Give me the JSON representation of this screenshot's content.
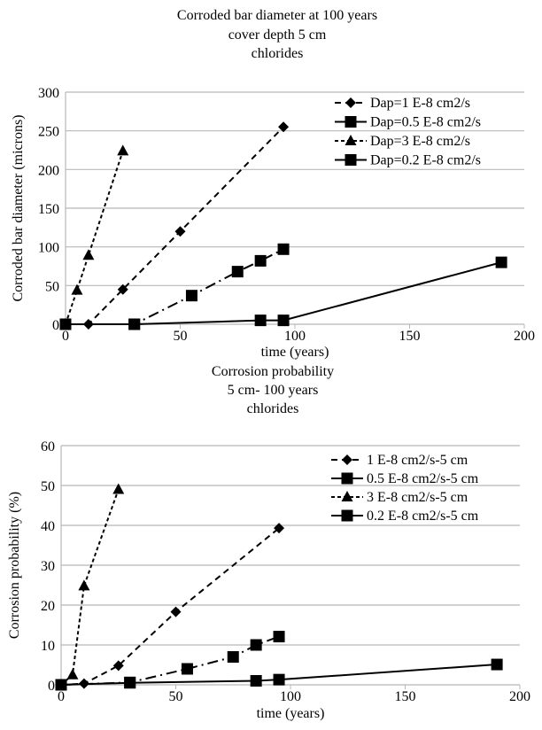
{
  "chart_data": [
    {
      "type": "line",
      "title": [
        "Corroded bar diameter at  100 years",
        "cover depth 5 cm",
        "chlorides"
      ],
      "xlabel": "time (years)",
      "ylabel": "Corroded bar diameter (microns)",
      "xlim": [
        0,
        200
      ],
      "ylim": [
        0,
        300
      ],
      "xticks": [
        0,
        50,
        100,
        150,
        200
      ],
      "yticks": [
        0,
        50,
        100,
        150,
        200,
        250,
        300
      ],
      "grid": "horizontal",
      "legend": "top-right",
      "series": [
        {
          "name": "Dap=1 E-8 cm2/s",
          "marker": "diamond",
          "dash": "dashed",
          "x": [
            0,
            10,
            25,
            50,
            95
          ],
          "y": [
            0,
            0,
            45,
            120,
            255
          ]
        },
        {
          "name": "Dap=0.5 E-8 cm2/s",
          "marker": "square",
          "dash": "dash-dot",
          "x": [
            0,
            30,
            55,
            75,
            85,
            95
          ],
          "y": [
            0,
            0,
            37,
            68,
            82,
            97
          ]
        },
        {
          "name": "Dap=3 E-8 cm2/s",
          "marker": "triangle",
          "dash": "short-dash",
          "x": [
            0,
            5,
            10,
            25
          ],
          "y": [
            0,
            44,
            89,
            224
          ]
        },
        {
          "name": "Dap=0.2 E-8 cm2/s",
          "marker": "square",
          "dash": "solid",
          "x": [
            0,
            30,
            85,
            95,
            190
          ],
          "y": [
            0,
            0,
            5,
            5,
            80
          ]
        }
      ]
    },
    {
      "type": "line",
      "title": [
        "Corrosion probability",
        "5 cm- 100 years",
        "chlorides"
      ],
      "xlabel": "time (years)",
      "ylabel": "Corrosion probability (%)",
      "xlim": [
        0,
        200
      ],
      "ylim": [
        0,
        60
      ],
      "xticks": [
        0,
        50,
        100,
        150,
        200
      ],
      "yticks": [
        0,
        10,
        20,
        30,
        40,
        50,
        60
      ],
      "grid": "horizontal",
      "legend": "top-right",
      "series": [
        {
          "name": "1 E-8 cm2/s-5 cm",
          "marker": "diamond",
          "dash": "dashed",
          "x": [
            0,
            10,
            25,
            50,
            95
          ],
          "y": [
            0,
            0.3,
            4.8,
            18.3,
            39.3
          ]
        },
        {
          "name": "0.5 E-8 cm2/s-5 cm",
          "marker": "square",
          "dash": "dash-dot",
          "x": [
            0,
            30,
            55,
            75,
            85,
            95
          ],
          "y": [
            0,
            0.6,
            4,
            7,
            10,
            12.1
          ]
        },
        {
          "name": "3 E-8 cm2/s-5 cm",
          "marker": "triangle",
          "dash": "short-dash",
          "x": [
            0,
            5,
            10,
            25
          ],
          "y": [
            0,
            2.5,
            24.8,
            49
          ]
        },
        {
          "name": "0.2 E-8 cm2/s-5 cm",
          "marker": "square",
          "dash": "solid",
          "x": [
            0,
            30,
            85,
            95,
            190
          ],
          "y": [
            0,
            0.5,
            1,
            1.3,
            5.1
          ]
        }
      ]
    }
  ]
}
